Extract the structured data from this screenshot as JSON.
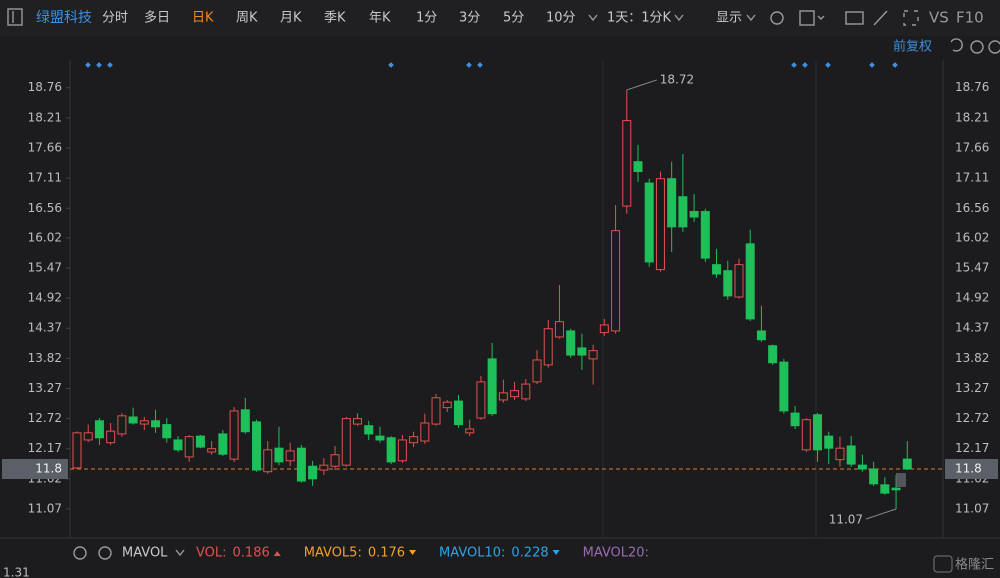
{
  "toolbar": {
    "stock": "绿盟科技",
    "periods": [
      "分时",
      "多日",
      "日K",
      "周K",
      "月K",
      "季K",
      "年K",
      "1分",
      "3分",
      "5分",
      "10分"
    ],
    "interval": "1天：1分K",
    "display": "显示",
    "vs": "VS",
    "f10": "F10"
  },
  "adjust": "前复权",
  "indicator": {
    "name": "MAVOL",
    "items": [
      {
        "name": "VOL:",
        "value": "0.186",
        "color": "#e2514c"
      },
      {
        "name": "MAVOL5:",
        "value": "0.176",
        "color": "#f0a030"
      },
      {
        "name": "MAVOL10:",
        "value": "0.228",
        "color": "#2fa3e6"
      },
      {
        "name": "MAVOL20:",
        "color": "#9a6bb3"
      }
    ]
  },
  "volume_axis_label": "1.31",
  "watermark": "格隆汇",
  "chart_data": {
    "type": "candlestick",
    "up_color": "#e2514c",
    "down_color": "#1fbf5a",
    "last_price_color": "#e07b2a",
    "ylim": [
      10.54,
      19.23
    ],
    "yticks": [
      11.07,
      11.62,
      12.17,
      12.72,
      13.27,
      13.82,
      14.37,
      14.92,
      15.47,
      16.02,
      16.56,
      17.11,
      17.66,
      18.21,
      18.76
    ],
    "open": [
      11.82,
      12.33,
      12.68,
      12.28,
      12.44,
      12.75,
      12.62,
      12.68,
      12.61,
      12.33,
      12.02,
      12.4,
      12.11,
      12.44,
      11.98,
      12.88,
      12.66,
      11.75,
      12.18,
      11.95,
      12.18,
      11.85,
      11.78,
      11.85,
      11.87,
      12.62,
      12.59,
      12.4,
      12.37,
      11.95,
      12.28,
      12.31,
      12.62,
      12.92,
      13.04,
      12.46,
      12.73,
      13.81,
      13.06,
      13.12,
      13.08,
      13.39,
      13.7,
      14.21,
      14.32,
      14.01,
      13.81,
      14.29,
      14.32,
      16.6,
      17.41,
      17.02,
      15.44,
      17.1,
      16.77,
      16.5,
      16.5,
      15.53,
      15.42,
      14.94,
      15.91,
      14.32,
      14.05,
      13.75,
      12.82,
      12.15,
      12.79,
      12.4,
      11.97,
      12.22,
      11.87,
      11.8,
      11.51,
      11.45,
      11.98
    ],
    "high": [
      12.49,
      12.61,
      12.73,
      12.64,
      12.82,
      12.92,
      12.75,
      12.88,
      12.73,
      12.4,
      12.42,
      12.42,
      12.31,
      12.51,
      12.93,
      13.1,
      12.7,
      12.31,
      12.57,
      12.28,
      12.24,
      11.95,
      12.0,
      12.22,
      12.75,
      12.82,
      12.68,
      12.57,
      12.4,
      12.42,
      12.48,
      12.81,
      13.17,
      13.06,
      13.15,
      12.7,
      13.5,
      14.1,
      13.43,
      13.39,
      13.44,
      13.97,
      14.52,
      15.16,
      14.36,
      14.27,
      14.07,
      14.54,
      16.62,
      18.72,
      17.72,
      17.1,
      17.23,
      17.41,
      17.55,
      16.82,
      16.55,
      15.82,
      15.6,
      15.64,
      16.17,
      14.78,
      14.07,
      13.81,
      12.95,
      12.73,
      12.82,
      12.48,
      12.39,
      12.4,
      12.06,
      11.93,
      11.65,
      11.69,
      12.31
    ],
    "low": [
      11.8,
      12.29,
      12.24,
      12.24,
      12.39,
      12.61,
      12.51,
      12.46,
      12.28,
      12.11,
      11.93,
      12.18,
      12.06,
      12.04,
      11.93,
      12.44,
      11.75,
      11.71,
      11.87,
      11.85,
      11.55,
      11.49,
      11.69,
      11.78,
      11.84,
      12.59,
      12.33,
      12.28,
      11.89,
      11.91,
      12.2,
      12.26,
      12.59,
      12.84,
      12.55,
      12.4,
      12.7,
      12.77,
      13.01,
      13.06,
      13.04,
      13.35,
      13.65,
      14.18,
      13.83,
      13.61,
      13.34,
      14.23,
      14.27,
      16.46,
      17.04,
      15.49,
      15.4,
      15.76,
      16.13,
      16.31,
      15.58,
      15.29,
      14.89,
      14.91,
      14.5,
      14.12,
      13.7,
      12.81,
      12.53,
      12.11,
      11.93,
      11.89,
      11.84,
      11.84,
      11.75,
      11.49,
      11.33,
      11.07,
      11.78
    ],
    "close": [
      12.46,
      12.46,
      12.37,
      12.49,
      12.77,
      12.64,
      12.68,
      12.57,
      12.37,
      12.15,
      12.39,
      12.2,
      12.17,
      12.07,
      12.86,
      12.48,
      11.78,
      12.15,
      11.93,
      12.13,
      11.58,
      11.62,
      11.87,
      12.06,
      12.72,
      12.72,
      12.44,
      12.33,
      11.93,
      12.33,
      12.39,
      12.64,
      13.1,
      13.02,
      12.61,
      12.53,
      13.39,
      12.81,
      13.19,
      13.23,
      13.35,
      13.79,
      14.36,
      14.49,
      13.88,
      13.88,
      13.96,
      14.43,
      16.15,
      18.16,
      17.23,
      15.58,
      17.1,
      16.22,
      16.22,
      16.4,
      15.65,
      15.36,
      14.96,
      15.53,
      14.54,
      14.16,
      13.74,
      12.86,
      12.59,
      12.7,
      12.15,
      12.18,
      12.18,
      11.89,
      11.8,
      11.53,
      11.36,
      11.42,
      11.8
    ]
  }
}
